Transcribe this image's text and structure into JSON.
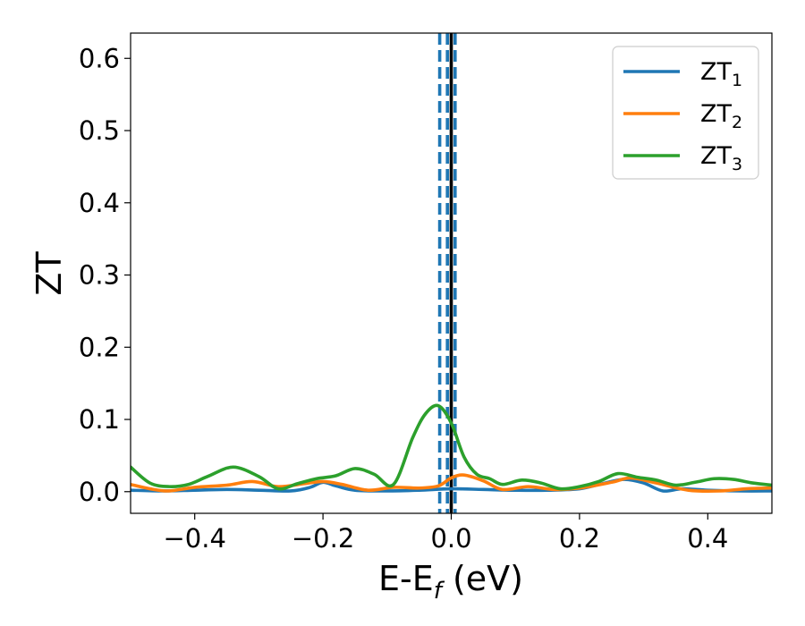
{
  "chart_data": {
    "type": "line",
    "title": "",
    "xlabel_main": "E-E",
    "xlabel_sub": "f",
    "xlabel_tail": " (eV)",
    "ylabel": "ZT",
    "xlim": [
      -0.5,
      0.5
    ],
    "ylim": [
      -0.03,
      0.635
    ],
    "grid": false,
    "legend_position": "top-right",
    "xticks": [
      -0.4,
      -0.2,
      0.0,
      0.2,
      0.4
    ],
    "xtick_labels": [
      "−0.4",
      "−0.2",
      "0.0",
      "0.2",
      "0.4"
    ],
    "yticks": [
      0.0,
      0.1,
      0.2,
      0.3,
      0.4,
      0.5,
      0.6
    ],
    "ytick_labels": [
      "0.0",
      "0.1",
      "0.2",
      "0.3",
      "0.4",
      "0.5",
      "0.6"
    ],
    "vlines": [
      {
        "x": 0.0,
        "style": "solid",
        "color": "#000000"
      },
      {
        "x": -0.018,
        "style": "dashed",
        "color": "#1f77b4"
      },
      {
        "x": -0.006,
        "style": "dashed",
        "color": "#1f77b4"
      },
      {
        "x": 0.006,
        "style": "dashed",
        "color": "#1f77b4"
      }
    ],
    "series": [
      {
        "name_main": "ZT",
        "name_sub": "1",
        "color": "#1f77b4",
        "x": [
          -0.5,
          -0.45,
          -0.4,
          -0.35,
          -0.3,
          -0.25,
          -0.22,
          -0.2,
          -0.18,
          -0.15,
          -0.1,
          -0.05,
          0.0,
          0.05,
          0.1,
          0.15,
          0.2,
          0.24,
          0.27,
          0.3,
          0.33,
          0.36,
          0.4,
          0.45,
          0.5
        ],
        "y": [
          0.002,
          0.001,
          0.002,
          0.003,
          0.002,
          0.001,
          0.006,
          0.013,
          0.008,
          0.002,
          0.001,
          0.002,
          0.004,
          0.003,
          0.002,
          0.002,
          0.004,
          0.012,
          0.017,
          0.012,
          0.001,
          0.004,
          0.002,
          0.001,
          0.001
        ]
      },
      {
        "name_main": "ZT",
        "name_sub": "2",
        "color": "#ff7f0e",
        "x": [
          -0.5,
          -0.47,
          -0.44,
          -0.4,
          -0.35,
          -0.31,
          -0.27,
          -0.23,
          -0.2,
          -0.17,
          -0.13,
          -0.09,
          -0.05,
          -0.02,
          0.0,
          0.02,
          0.05,
          0.08,
          0.12,
          0.16,
          0.2,
          0.25,
          0.28,
          0.32,
          0.37,
          0.42,
          0.46,
          0.5
        ],
        "y": [
          0.01,
          0.004,
          0.001,
          0.006,
          0.009,
          0.014,
          0.007,
          0.011,
          0.014,
          0.01,
          0.002,
          0.006,
          0.005,
          0.008,
          0.019,
          0.023,
          0.015,
          0.003,
          0.007,
          0.003,
          0.005,
          0.013,
          0.019,
          0.012,
          0.002,
          0.001,
          0.004,
          0.005
        ]
      },
      {
        "name_main": "ZT",
        "name_sub": "3",
        "color": "#2ca02c",
        "x": [
          -0.5,
          -0.47,
          -0.44,
          -0.41,
          -0.38,
          -0.34,
          -0.3,
          -0.27,
          -0.24,
          -0.21,
          -0.18,
          -0.15,
          -0.12,
          -0.09,
          -0.06,
          -0.04,
          -0.02,
          0.0,
          0.02,
          0.04,
          0.06,
          0.08,
          0.11,
          0.14,
          0.17,
          0.2,
          0.23,
          0.26,
          0.29,
          0.32,
          0.35,
          0.38,
          0.41,
          0.44,
          0.47,
          0.5
        ],
        "y": [
          0.034,
          0.012,
          0.007,
          0.01,
          0.021,
          0.034,
          0.021,
          0.004,
          0.011,
          0.018,
          0.022,
          0.032,
          0.024,
          0.01,
          0.075,
          0.108,
          0.119,
          0.095,
          0.048,
          0.024,
          0.018,
          0.01,
          0.016,
          0.012,
          0.004,
          0.007,
          0.014,
          0.025,
          0.02,
          0.016,
          0.009,
          0.013,
          0.018,
          0.017,
          0.012,
          0.009
        ]
      }
    ]
  }
}
